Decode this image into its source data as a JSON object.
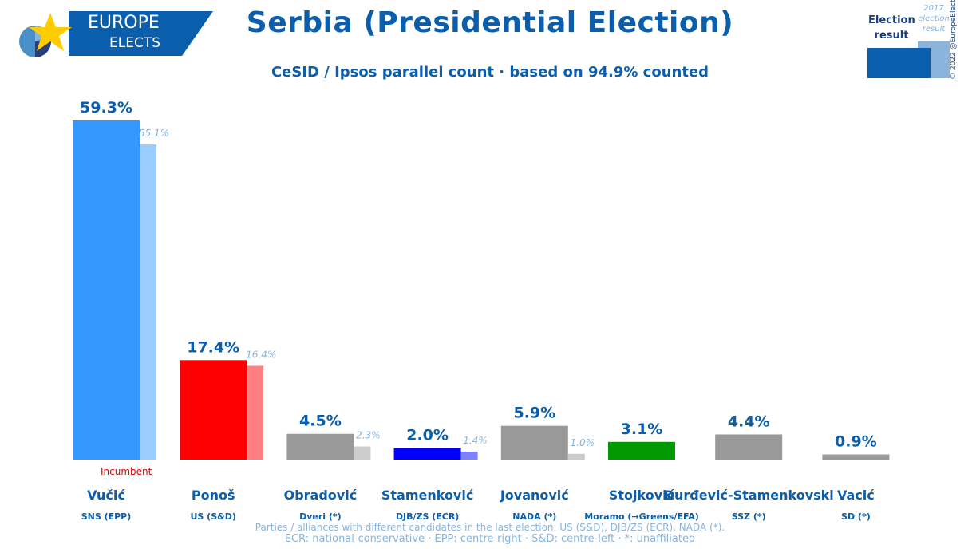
{
  "logo": {
    "line1": "EUROPE",
    "line2": "ELECTS"
  },
  "header": {
    "title": "Serbia (Presidential Election)",
    "subtitle": "CeSID / Ipsos parallel count · based on 94.9% counted"
  },
  "legend": {
    "current": "Election result",
    "previous": "2017 election result",
    "copyright": "© 2022 @EuropeElects"
  },
  "footnotes": {
    "line1": "Parties / alliances with different candidates in the last election: US (S&D), DJB/ZS (ECR), NADA (*).",
    "line2": "ECR: national-conservative · EPP: centre-right · S&D: centre-left · *: unaffiliated"
  },
  "chart_data": {
    "type": "bar",
    "title": "Serbia (Presidential Election)",
    "ylim": [
      0,
      60
    ],
    "categories": [
      "Vučić",
      "Ponoš",
      "Obradović",
      "Stamenković",
      "Jovanović",
      "Stojković",
      "Đurđević-Stamenkovski",
      "Vacić"
    ],
    "parties": [
      "SNS (EPP)",
      "US (S&D)",
      "Dveri (*)",
      "DJB/ZS (ECR)",
      "NADA (*)",
      "Moramo (→Greens/EFA)",
      "SSZ (*)",
      "SD (*)"
    ],
    "series": [
      {
        "name": "Election result",
        "values": [
          59.3,
          17.4,
          4.5,
          2.0,
          5.9,
          3.1,
          4.4,
          0.9
        ],
        "labels": [
          "59.3%",
          "17.4%",
          "4.5%",
          "2.0%",
          "5.9%",
          "3.1%",
          "4.4%",
          "0.9%"
        ]
      },
      {
        "name": "2017 election result",
        "values": [
          55.1,
          16.4,
          2.3,
          1.4,
          1.0,
          null,
          null,
          null
        ],
        "labels": [
          "55.1%",
          "16.4%",
          "2.3%",
          "1.4%",
          "1.0%",
          null,
          null,
          null
        ]
      }
    ],
    "colors": [
      "#3399ff",
      "#ff0000",
      "#999999",
      "#0000ff",
      "#999999",
      "#009900",
      "#999999",
      "#999999"
    ],
    "prev_colors": [
      "#99ccff",
      "#ff8080",
      "#cccccc",
      "#8080ff",
      "#cccccc",
      null,
      null,
      null
    ],
    "annotations": [
      {
        "category": "Vučić",
        "text": "Incumbent",
        "color": "#e00000"
      }
    ]
  }
}
